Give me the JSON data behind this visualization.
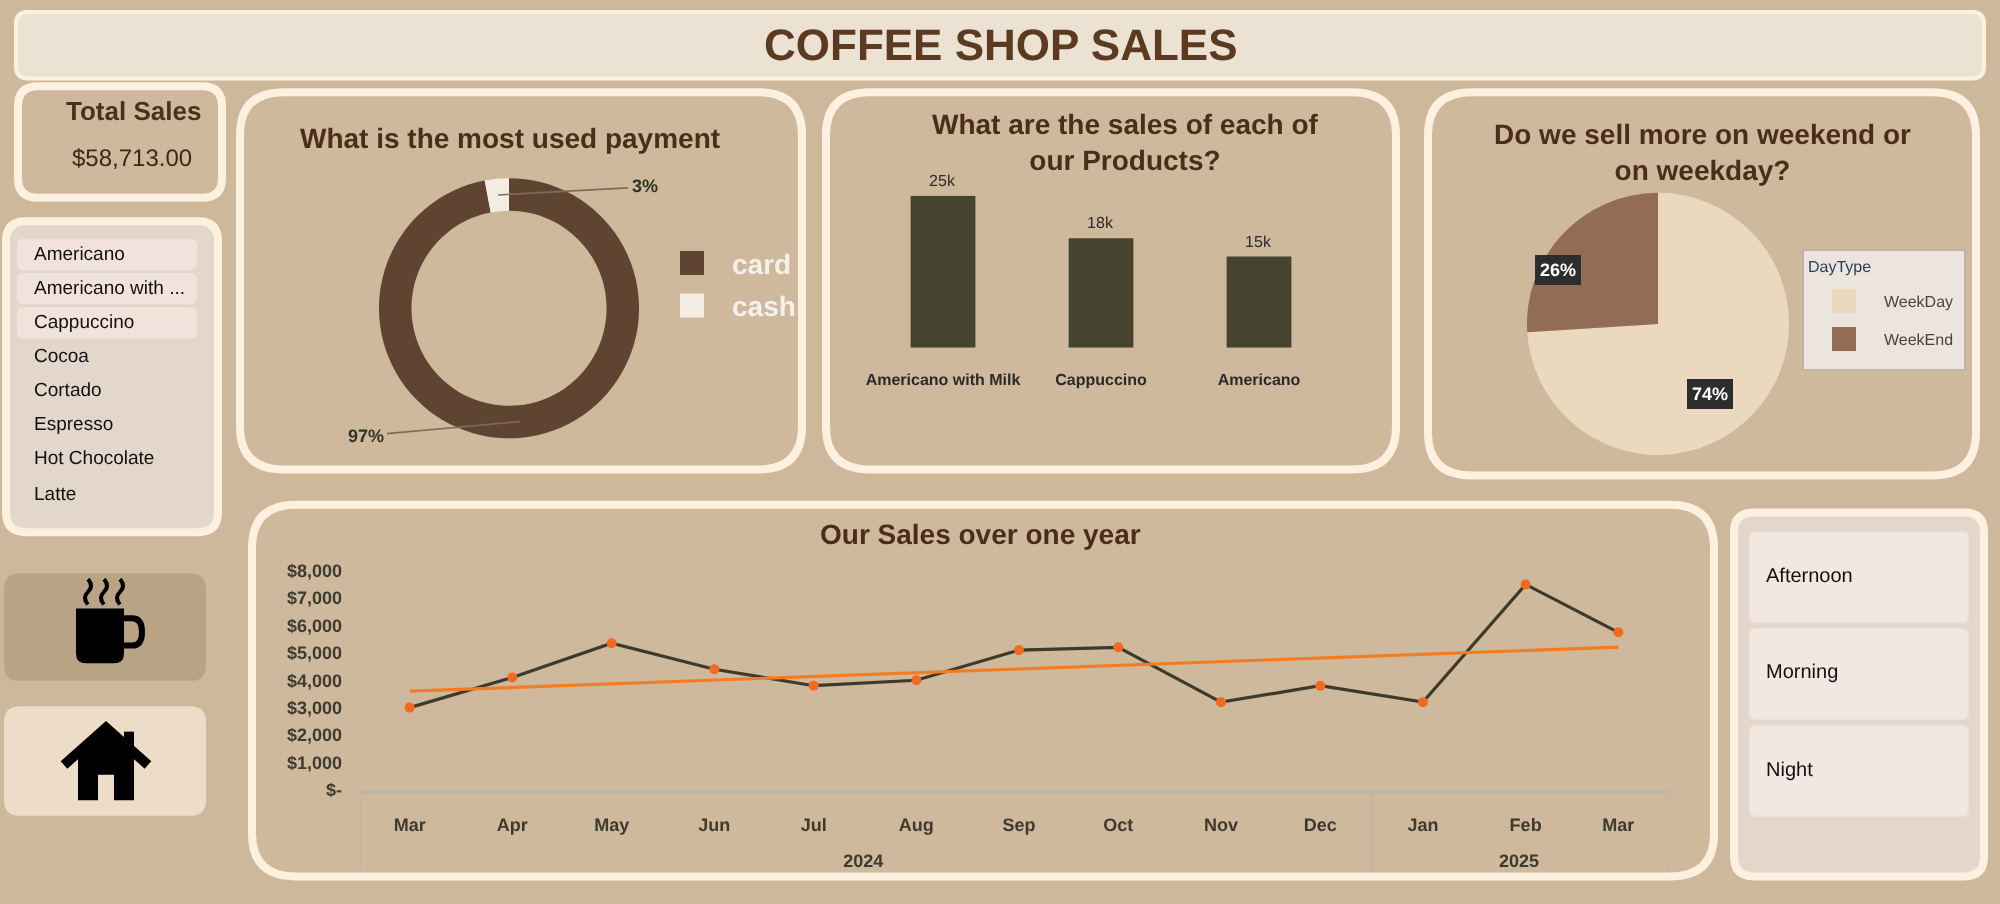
{
  "chart_data": [
    {
      "type": "other",
      "title": "COFFEE SHOP SALES"
    },
    {
      "type": "other",
      "title": "Total Sales",
      "annotations": [
        "$58,713.00"
      ]
    },
    {
      "type": "donut",
      "title": "What is the most used payment",
      "categories": [
        "card",
        "cash"
      ],
      "values": [
        97,
        3
      ],
      "colors": [
        "#5f4531",
        "#f4ede3"
      ],
      "value_labels": [
        "97%",
        "3%"
      ],
      "legend": "right"
    },
    {
      "type": "bar",
      "title": "What are the sales of each of our Products?",
      "categories": [
        "Americano with Milk",
        "Cappuccino",
        "Americano"
      ],
      "values": [
        25000,
        18000,
        15000
      ],
      "value_labels": [
        "25k",
        "18k",
        "15k"
      ],
      "color": "#46432f",
      "tick_labels": "x"
    },
    {
      "type": "pie",
      "title": "Do we sell more on weekend or on weekday?",
      "categories": [
        "WeekDay",
        "WeekEnd"
      ],
      "values": [
        74,
        26
      ],
      "colors": [
        "#ead8bf",
        "#936c55"
      ],
      "value_labels": [
        "74%",
        "26%"
      ],
      "legend": "right",
      "legend_title": "DayType"
    },
    {
      "type": "other",
      "annotations": [
        "Americano",
        "Americano with ...",
        "Cappuccino",
        "Cocoa",
        "Cortado",
        "Espresso",
        "Hot Chocolate",
        "Latte"
      ],
      "colors": [
        "#f1e3dc",
        "#f1e3dc",
        "#f1e3dc",
        null,
        null,
        null,
        null,
        null
      ]
    },
    {
      "type": "line",
      "title": "Our Sales over one year",
      "x": [
        "2024-03",
        "2024-04",
        "2024-05",
        "2024-06",
        "2024-07",
        "2024-08",
        "2024-09",
        "2024-10",
        "2024-11",
        "2024-12",
        "2025-01",
        "2025-02",
        "2025-03"
      ],
      "series": [
        {
          "color": "#3b3a2b",
          "colors": [
            "#f26a1f",
            "#f26a1f",
            "#f26a1f",
            "#f26a1f",
            "#f26a1f",
            "#f26a1f",
            "#f26a1f",
            "#f26a1f",
            "#f26a1f",
            "#f26a1f",
            "#f26a1f",
            "#f26a1f",
            "#f26a1f"
          ],
          "values": [
            3000,
            4100,
            5350,
            4400,
            3800,
            4000,
            5100,
            5200,
            3200,
            3800,
            3200,
            7500,
            5750
          ]
        },
        {
          "type": "line",
          "x": [
            "2024-03",
            "2025-03"
          ],
          "values": [
            3600,
            5210
          ],
          "color": "#f47c20",
          "marker": "none"
        }
      ],
      "xlim": [
        "2024-02-15",
        "2025-03-16"
      ],
      "xticks": [
        {
          "value": "2024-03",
          "label": "Mar"
        },
        {
          "value": "2024-04",
          "label": "Apr"
        },
        {
          "value": "2024-05",
          "label": "May"
        },
        {
          "value": "2024-06",
          "label": "Jun"
        },
        {
          "value": "2024-07",
          "label": "Jul"
        },
        {
          "value": "2024-08",
          "label": "Aug"
        },
        {
          "value": "2024-09",
          "label": "Sep"
        },
        {
          "value": "2024-10",
          "label": "Oct"
        },
        {
          "value": "2024-11",
          "label": "Nov"
        },
        {
          "value": "2024-12",
          "label": "Dec"
        },
        {
          "value": "2025-01",
          "label": "Jan"
        },
        {
          "value": "2025-02",
          "label": "Feb"
        },
        {
          "value": "2025-03",
          "label": "Mar"
        }
      ],
      "x2lim": [
        "2024-02-15",
        "2025-03-16"
      ],
      "x2ticks": [
        {
          "value": "2024-07-16",
          "label": "2024"
        },
        {
          "value": "2025-01-30",
          "label": "2025"
        }
      ],
      "ylim": [
        0,
        8000
      ],
      "yticks": [
        {
          "value": 0,
          "label": "$-"
        },
        {
          "value": 1000,
          "label": "$1,000"
        },
        {
          "value": 2000,
          "label": "$2,000"
        },
        {
          "value": 3000,
          "label": "$3,000"
        },
        {
          "value": 4000,
          "label": "$4,000"
        },
        {
          "value": 5000,
          "label": "$5,000"
        },
        {
          "value": 6000,
          "label": "$6,000"
        },
        {
          "value": 7000,
          "label": "$7,000"
        },
        {
          "value": 8000,
          "label": "$8,000"
        }
      ],
      "marker": "circle"
    },
    {
      "type": "other",
      "annotations": [
        "Afternoon",
        "Morning",
        "Night"
      ],
      "colors": [
        "#f3e7e1",
        "#f3e7e1",
        "#f3e7e1"
      ]
    }
  ]
}
